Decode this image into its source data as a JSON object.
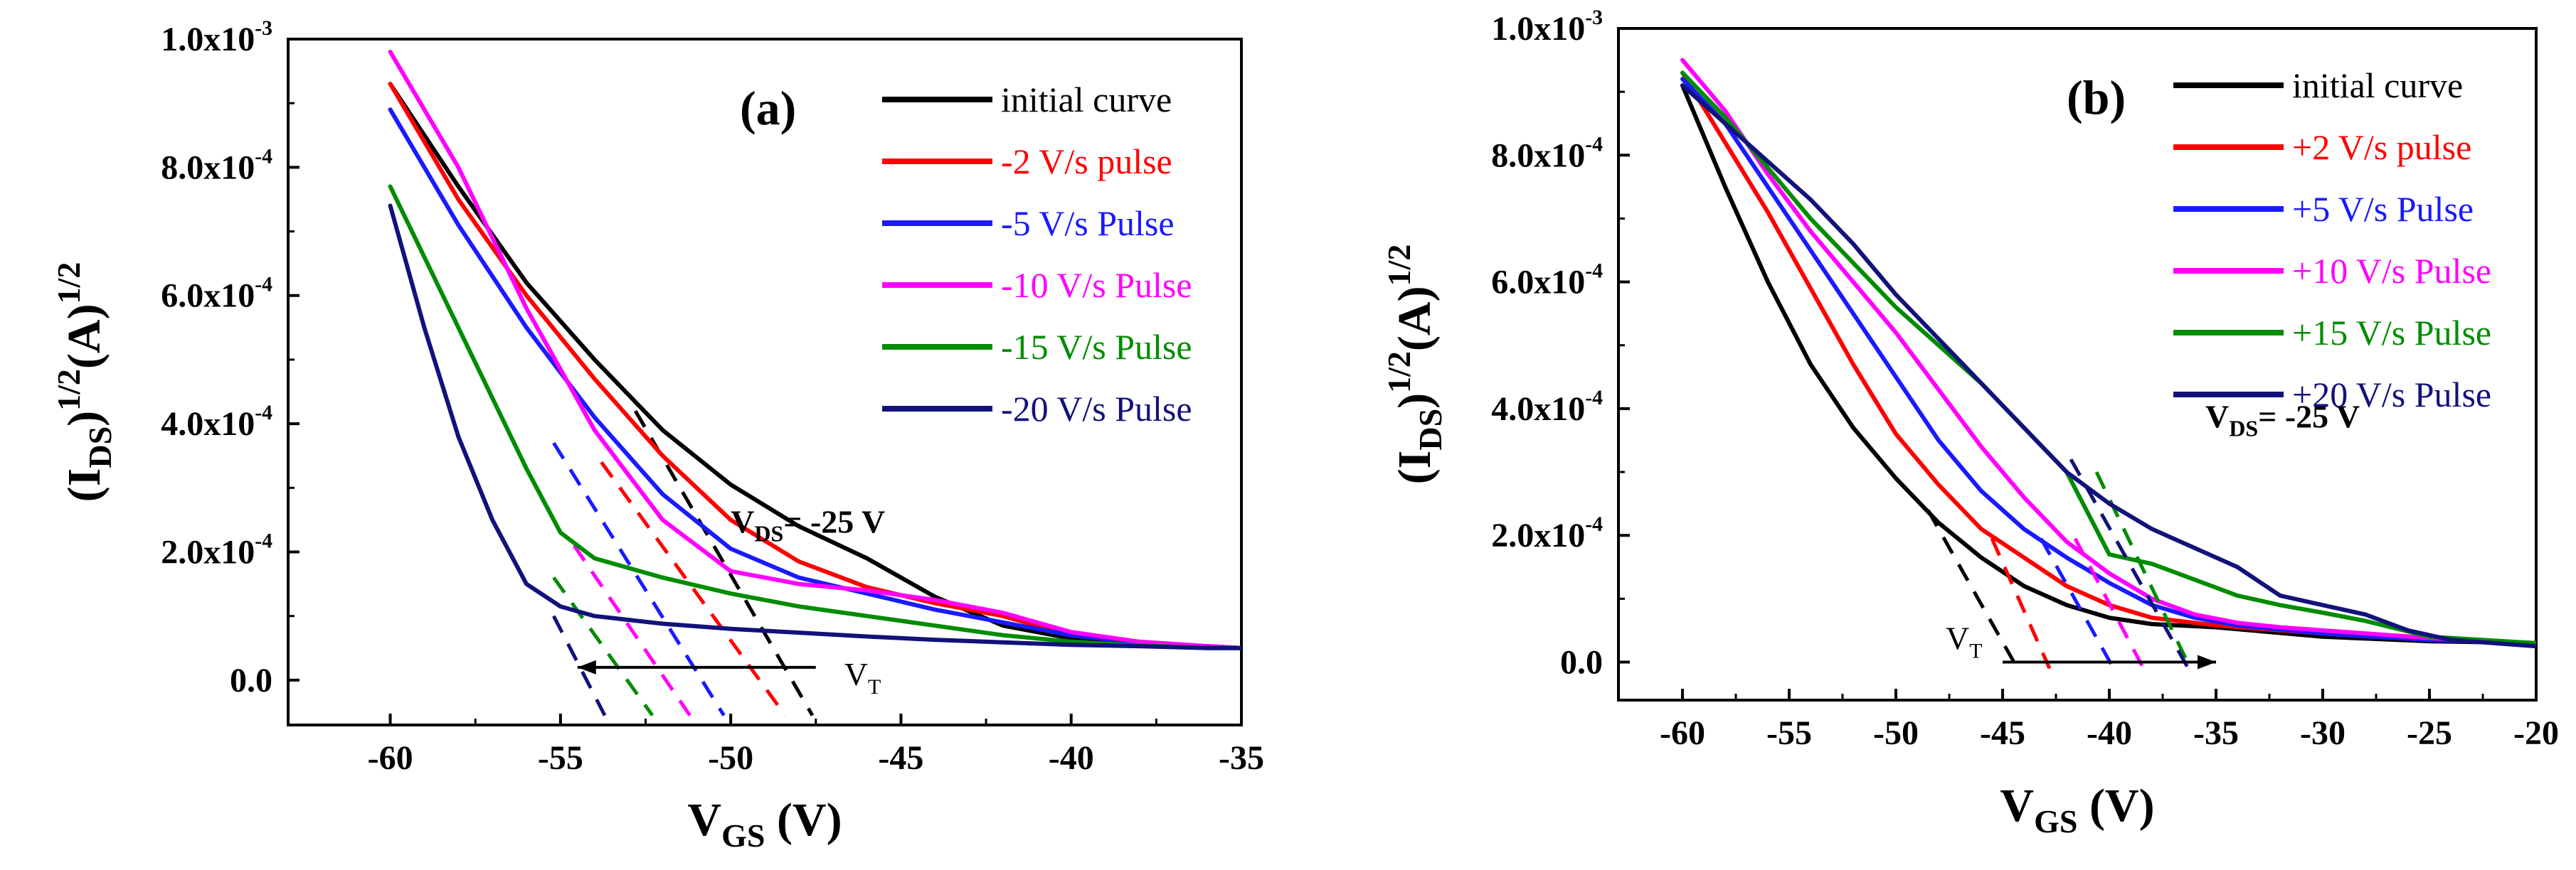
{
  "colors": {
    "black": "#000000",
    "red": "#ff0000",
    "blue": "#1a1aff",
    "magenta": "#ff00ff",
    "green": "#008c00",
    "navy": "#12127a"
  },
  "chart_data": [
    {
      "type": "line",
      "panel_label": "(a)",
      "ylabel": "(I_DS)^1/2 (A)^1/2",
      "xlabel": "V_GS (V)",
      "xlim": [
        -63,
        -35
      ],
      "ylim": [
        -7e-05,
        0.001
      ],
      "x_ticks": [
        -60,
        -55,
        -50,
        -45,
        -40,
        -35
      ],
      "x_tick_labels": [
        "-60",
        "-55",
        "-50",
        "-45",
        "-40",
        "-35"
      ],
      "y_ticks": [
        0.0,
        0.0002,
        0.0004,
        0.0006,
        0.0008,
        0.001
      ],
      "y_tick_labels": [
        {
          "mantissa": "0.0",
          "exp": ""
        },
        {
          "mantissa": "2.0x10",
          "exp": "-4"
        },
        {
          "mantissa": "4.0x10",
          "exp": "-4"
        },
        {
          "mantissa": "6.0x10",
          "exp": "-4"
        },
        {
          "mantissa": "8.0x10",
          "exp": "-4"
        },
        {
          "mantissa": "1.0x10",
          "exp": "-3"
        }
      ],
      "annotation": {
        "main": "V",
        "sub": "DS",
        "rest": "= -25 V",
        "x": -50,
        "y": 0.00023
      },
      "vt_label": {
        "main": "V",
        "sub": "T"
      },
      "vt_arrow": {
        "from": -47.5,
        "to": -54.5,
        "y": 2e-05
      },
      "legend": {
        "position": "top-right"
      },
      "series": [
        {
          "name": "initial curve",
          "color": "black",
          "x": [
            -60,
            -58,
            -56,
            -54,
            -52,
            -50,
            -48,
            -46,
            -44,
            -42,
            -40,
            -38,
            -36,
            -35
          ],
          "y": [
            0.00093,
            0.00077,
            0.00062,
            0.0005,
            0.00039,
            0.000305,
            0.00024,
            0.00019,
            0.00013,
            8.5e-05,
            6.5e-05,
            5.8e-05,
            5.3e-05,
            5e-05
          ],
          "tangent": {
            "x": [
              -52.8,
              -47.6
            ],
            "y": [
              0.00042,
              -5.5e-05
            ]
          }
        },
        {
          "name": "-2 V/s pulse",
          "color": "red",
          "x": [
            -60,
            -58,
            -56,
            -54,
            -52,
            -50,
            -48,
            -46,
            -44,
            -42,
            -40,
            -38,
            -36,
            -35
          ],
          "y": [
            0.00093,
            0.00075,
            0.0006,
            0.00047,
            0.00035,
            0.00025,
            0.000185,
            0.000145,
            0.00012,
            0.0001,
            7e-05,
            5.8e-05,
            5.3e-05,
            5e-05
          ],
          "tangent": {
            "x": [
              -53.8,
              -48.4
            ],
            "y": [
              0.00034,
              -5.5e-05
            ]
          }
        },
        {
          "name": "-5 V/s Pulse",
          "color": "blue",
          "x": [
            -60,
            -58,
            -56,
            -54,
            -52,
            -50,
            -48,
            -46,
            -44,
            -42,
            -40,
            -38,
            -36,
            -35
          ],
          "y": [
            0.00089,
            0.00071,
            0.00055,
            0.00041,
            0.00029,
            0.000205,
            0.00016,
            0.000135,
            0.00011,
            9e-05,
            7e-05,
            5.8e-05,
            5.3e-05,
            5e-05
          ],
          "tangent": {
            "x": [
              -55.2,
              -50.2
            ],
            "y": [
              0.00037,
              -5.5e-05
            ]
          }
        },
        {
          "name": "-10 V/s Pulse",
          "color": "magenta",
          "x": [
            -60,
            -58,
            -56,
            -54,
            -52,
            -50,
            -48,
            -46,
            -44,
            -42,
            -40,
            -38,
            -36,
            -35
          ],
          "y": [
            0.00098,
            0.0008,
            0.00058,
            0.00039,
            0.00025,
            0.00017,
            0.00015,
            0.00014,
            0.000125,
            0.000105,
            7.5e-05,
            6e-05,
            5.3e-05,
            5e-05
          ],
          "tangent": {
            "x": [
              -54.6,
              -51.2
            ],
            "y": [
              0.00021,
              -5.5e-05
            ]
          }
        },
        {
          "name": "-15 V/s Pulse",
          "color": "green",
          "x": [
            -60,
            -58,
            -56,
            -55,
            -54,
            -52,
            -50,
            -48,
            -46,
            -44,
            -42,
            -40,
            -38,
            -36,
            -35
          ],
          "y": [
            0.00077,
            0.00055,
            0.00033,
            0.00023,
            0.00019,
            0.00016,
            0.000135,
            0.000115,
            0.0001,
            8.5e-05,
            7e-05,
            6e-05,
            5.4e-05,
            5e-05,
            5e-05
          ],
          "tangent": {
            "x": [
              -55.2,
              -52.3
            ],
            "y": [
              0.00016,
              -5.5e-05
            ]
          }
        },
        {
          "name": "-20 V/s Pulse",
          "color": "navy",
          "x": [
            -60,
            -59,
            -58,
            -57,
            -56,
            -55,
            -54,
            -52,
            -50,
            -48,
            -46,
            -44,
            -42,
            -40,
            -38,
            -36,
            -35
          ],
          "y": [
            0.00074,
            0.00055,
            0.00038,
            0.00025,
            0.00015,
            0.000115,
            0.0001,
            8.8e-05,
            8e-05,
            7.4e-05,
            6.8e-05,
            6.3e-05,
            5.9e-05,
            5.5e-05,
            5.3e-05,
            5e-05,
            5e-05
          ],
          "tangent": {
            "x": [
              -55.2,
              -53.7
            ],
            "y": [
              0.0001,
              -5.5e-05
            ]
          }
        }
      ]
    },
    {
      "type": "line",
      "panel_label": "(b)",
      "ylabel": "(I_DS)^1/2 (A)^1/2",
      "xlabel": "V_GS (V)",
      "xlim": [
        -63,
        -20
      ],
      "ylim": [
        -6e-05,
        0.001
      ],
      "x_ticks": [
        -60,
        -55,
        -50,
        -45,
        -40,
        -35,
        -30,
        -25,
        -20
      ],
      "x_tick_labels": [
        "-60",
        "-55",
        "-50",
        "-45",
        "-40",
        "-35",
        "-30",
        "-25",
        "-20"
      ],
      "y_ticks": [
        0.0,
        0.0002,
        0.0004,
        0.0006,
        0.0008,
        0.001
      ],
      "y_tick_labels": [
        {
          "mantissa": "0.0",
          "exp": ""
        },
        {
          "mantissa": "2.0x10",
          "exp": "-4"
        },
        {
          "mantissa": "4.0x10",
          "exp": "-4"
        },
        {
          "mantissa": "6.0x10",
          "exp": "-4"
        },
        {
          "mantissa": "8.0x10",
          "exp": "-4"
        },
        {
          "mantissa": "1.0x10",
          "exp": "-3"
        }
      ],
      "annotation": {
        "main": "V",
        "sub": "DS",
        "rest": "= -25 V",
        "x": -35.5,
        "y": 0.00037
      },
      "vt_label": {
        "main": "V",
        "sub": "T"
      },
      "vt_arrow": {
        "from": -45,
        "to": -35,
        "y": 0.0
      },
      "legend": {
        "position": "top-right"
      },
      "series": [
        {
          "name": "initial curve",
          "color": "black",
          "x": [
            -60,
            -58,
            -56,
            -54,
            -52,
            -50,
            -48,
            -46,
            -44,
            -42,
            -40,
            -38,
            -35,
            -30,
            -25,
            -20
          ],
          "y": [
            0.00091,
            0.00075,
            0.0006,
            0.00047,
            0.00037,
            0.00029,
            0.00022,
            0.000165,
            0.00012,
            9e-05,
            7e-05,
            6e-05,
            5.5e-05,
            4e-05,
            3.3e-05,
            3e-05
          ],
          "tangent": {
            "x": [
              -48.5,
              -44.3
            ],
            "y": [
              0.00024,
              -1e-05
            ]
          }
        },
        {
          "name": "+2 V/s pulse",
          "color": "red",
          "x": [
            -60,
            -58,
            -56,
            -54,
            -52,
            -50,
            -48,
            -46,
            -44,
            -42,
            -40,
            -38,
            -35,
            -30,
            -25,
            -20
          ],
          "y": [
            0.00093,
            0.00082,
            0.00071,
            0.00059,
            0.00047,
            0.00036,
            0.00028,
            0.00021,
            0.000165,
            0.00012,
            9e-05,
            7e-05,
            5.8e-05,
            4.5e-05,
            3.5e-05,
            3e-05
          ],
          "tangent": {
            "x": [
              -45.5,
              -42.8
            ],
            "y": [
              0.000195,
              -1e-05
            ]
          }
        },
        {
          "name": "+5 V/s Pulse",
          "color": "blue",
          "x": [
            -60,
            -58,
            -56,
            -54,
            -52,
            -50,
            -48,
            -46,
            -44,
            -42,
            -40,
            -38,
            -36,
            -34,
            -30,
            -25,
            -20
          ],
          "y": [
            0.00092,
            0.00085,
            0.00075,
            0.00065,
            0.00055,
            0.00045,
            0.00035,
            0.00027,
            0.00021,
            0.000165,
            0.000125,
            9e-05,
            7e-05,
            5.8e-05,
            4.5e-05,
            3.5e-05,
            3e-05
          ],
          "tangent": {
            "x": [
              -43.2,
              -39.8
            ],
            "y": [
              0.000195,
              -1e-05
            ]
          }
        },
        {
          "name": "+10 V/s Pulse",
          "color": "magenta",
          "x": [
            -60,
            -58,
            -56,
            -54,
            -52,
            -50,
            -48,
            -46,
            -44,
            -42,
            -40,
            -38,
            -36,
            -34,
            -32,
            -30,
            -25,
            -20
          ],
          "y": [
            0.00095,
            0.00087,
            0.00077,
            0.00068,
            0.0006,
            0.00052,
            0.00043,
            0.00034,
            0.00026,
            0.00019,
            0.00014,
            0.0001,
            7.5e-05,
            6.2e-05,
            5.5e-05,
            5e-05,
            3.8e-05,
            3e-05
          ],
          "tangent": {
            "x": [
              -41.6,
              -38.4
            ],
            "y": [
              0.000195,
              -1e-05
            ]
          }
        },
        {
          "name": "+15 V/s Pulse",
          "color": "green",
          "x": [
            -60,
            -58,
            -56,
            -54,
            -52,
            -50,
            -48,
            -46,
            -44,
            -42,
            -40,
            -38,
            -36,
            -34,
            -32,
            -30,
            -28,
            -25,
            -20
          ],
          "y": [
            0.00093,
            0.00086,
            0.00078,
            0.0007,
            0.00063,
            0.00056,
            0.0005,
            0.00044,
            0.00037,
            0.0003,
            0.00017,
            0.000155,
            0.00013,
            0.000105,
            9e-05,
            7.8e-05,
            6.5e-05,
            4e-05,
            3e-05
          ],
          "tangent": {
            "x": [
              -40.6,
              -36.2
            ],
            "y": [
              0.0003,
              -1e-05
            ]
          }
        },
        {
          "name": "+20 V/s Pulse",
          "color": "navy",
          "x": [
            -60,
            -58,
            -56,
            -54,
            -52,
            -50,
            -48,
            -46,
            -44,
            -42,
            -40,
            -38,
            -36,
            -34,
            -32,
            -30,
            -28,
            -26,
            -24,
            -22,
            -20
          ],
          "y": [
            0.00091,
            0.00085,
            0.00079,
            0.00073,
            0.00066,
            0.00058,
            0.00051,
            0.00044,
            0.00037,
            0.0003,
            0.00025,
            0.00021,
            0.00018,
            0.00015,
            0.000105,
            9e-05,
            7.5e-05,
            5e-05,
            3.5e-05,
            3e-05,
            2.5e-05
          ],
          "tangent": {
            "x": [
              -41.8,
              -36.3
            ],
            "y": [
              0.00032,
              -1e-05
            ]
          }
        }
      ]
    }
  ]
}
